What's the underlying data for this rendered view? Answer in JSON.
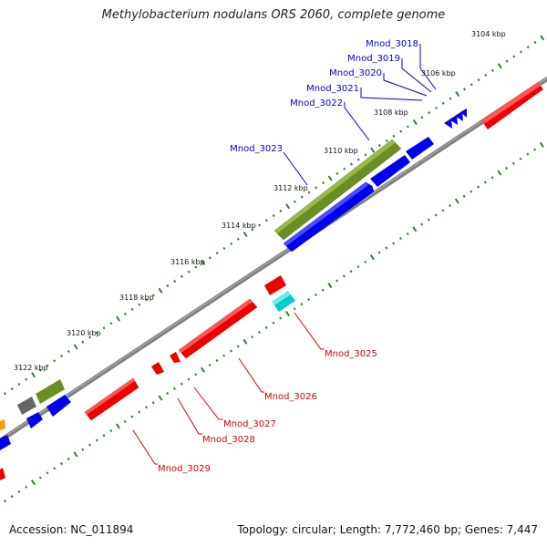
{
  "title": "Methylobacterium nodulans ORS 2060, complete genome",
  "footer": {
    "accession_label": "Accession:",
    "accession": "NC_011894",
    "topology_label": "Topology:",
    "topology": "circular",
    "length_label": "Length:",
    "length": "7,772,460 bp",
    "genes_label": "Genes:",
    "genes": "7,447"
  },
  "colors": {
    "backbone": "#808080",
    "ticks": "#228b22",
    "forward_label": "#0000cc",
    "reverse_label": "#dd0000",
    "gene_blue": "#0000ee",
    "gene_red": "#ee0000",
    "gene_green": "#6b8e23",
    "gene_gray": "#666666",
    "gene_cyan": "#00cccc",
    "gene_orange": "#ff9900"
  },
  "scale_labels": [
    "3104 kbp",
    "3106 kbp",
    "3108 kbp",
    "3110 kbp",
    "3112 kbp",
    "3114 kbp",
    "3116 kbp",
    "3118 kbp",
    "3120 kbp",
    "3122 kbp"
  ],
  "genes_forward": [
    "Mnod_3018",
    "Mnod_3019",
    "Mnod_3020",
    "Mnod_3021",
    "Mnod_3022",
    "Mnod_3023"
  ],
  "genes_reverse": [
    "Mnod_3025",
    "Mnod_3026",
    "Mnod_3027",
    "Mnod_3028",
    "Mnod_3029"
  ]
}
